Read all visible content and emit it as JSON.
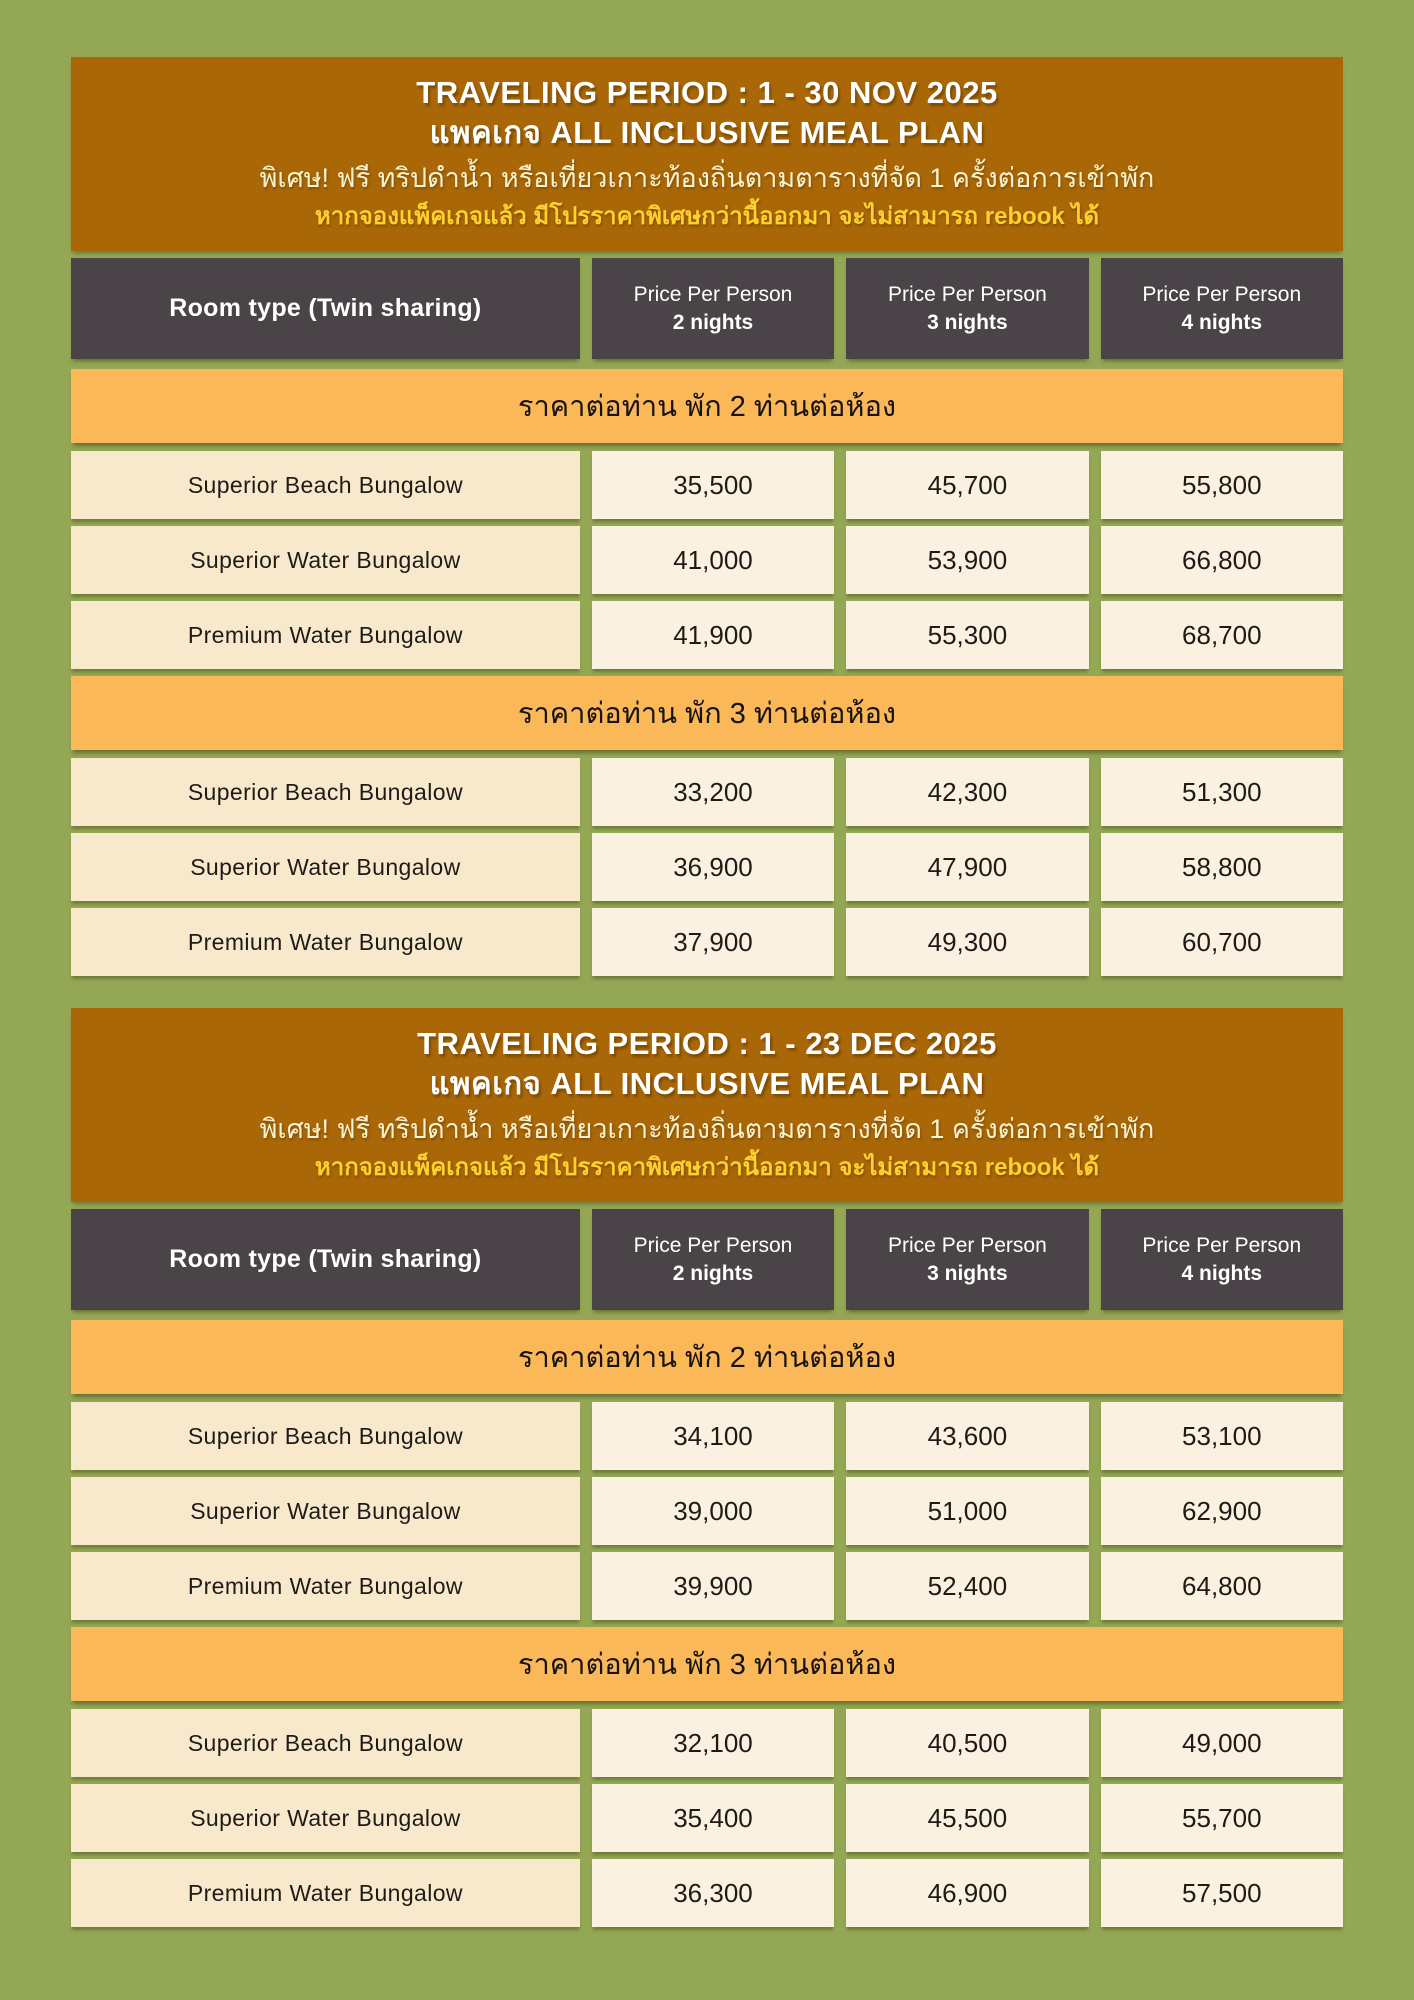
{
  "colors": {
    "page_background": "#93A754",
    "header_brown": "#A96708",
    "table_header_gray": "#4A4448",
    "band_orange": "#FAB859",
    "name_cell_cream": "#F8E9CD",
    "price_cell_cream": "#FBF1E1",
    "title_white": "#FFFFFF",
    "promo_pale_yellow": "#FBF3CF",
    "warning_gold": "#FFD02E"
  },
  "sections": [
    {
      "header": {
        "title_line1": "TRAVELING PERIOD : 1 - 30 NOV 2025",
        "title_line2": "แพคเกจ ALL INCLUSIVE MEAL PLAN",
        "promo_line": "พิเศษ! ฟรี ทริปดำน้ำ หรือเที่ยวเกาะท้องถิ่นตามตารางที่จัด 1 ครั้งต่อการเข้าพัก",
        "warning_line": "หากจองแพ็คเกจแล้ว มีโปรราคาพิเศษกว่านี้ออกมา จะไม่สามารถ rebook ได้"
      },
      "table_header": {
        "room_type": "Room type (Twin sharing)",
        "price_label": "Price Per Person",
        "nights": [
          "2 nights",
          "3 nights",
          "4 nights"
        ]
      },
      "subtables": [
        {
          "band_label": "ราคาต่อท่าน พัก 2 ท่านต่อห้อง",
          "rows": [
            {
              "name": "Superior Beach Bungalow",
              "prices": [
                "35,500",
                "45,700",
                "55,800"
              ]
            },
            {
              "name": "Superior Water Bungalow",
              "prices": [
                "41,000",
                "53,900",
                "66,800"
              ]
            },
            {
              "name": "Premium Water Bungalow",
              "prices": [
                "41,900",
                "55,300",
                "68,700"
              ]
            }
          ]
        },
        {
          "band_label": "ราคาต่อท่าน พัก 3 ท่านต่อห้อง",
          "rows": [
            {
              "name": "Superior Beach Bungalow",
              "prices": [
                "33,200",
                "42,300",
                "51,300"
              ]
            },
            {
              "name": "Superior Water Bungalow",
              "prices": [
                "36,900",
                "47,900",
                "58,800"
              ]
            },
            {
              "name": "Premium Water Bungalow",
              "prices": [
                "37,900",
                "49,300",
                "60,700"
              ]
            }
          ]
        }
      ]
    },
    {
      "header": {
        "title_line1": "TRAVELING PERIOD : 1 - 23 DEC 2025",
        "title_line2": "แพคเกจ ALL INCLUSIVE MEAL PLAN",
        "promo_line": "พิเศษ! ฟรี ทริปดำน้ำ หรือเที่ยวเกาะท้องถิ่นตามตารางที่จัด 1 ครั้งต่อการเข้าพัก",
        "warning_line": "หากจองแพ็คเกจแล้ว มีโปรราคาพิเศษกว่านี้ออกมา จะไม่สามารถ rebook ได้"
      },
      "table_header": {
        "room_type": "Room type (Twin sharing)",
        "price_label": "Price Per Person",
        "nights": [
          "2 nights",
          "3 nights",
          "4 nights"
        ]
      },
      "subtables": [
        {
          "band_label": "ราคาต่อท่าน พัก 2 ท่านต่อห้อง",
          "rows": [
            {
              "name": "Superior Beach Bungalow",
              "prices": [
                "34,100",
                "43,600",
                "53,100"
              ]
            },
            {
              "name": "Superior Water Bungalow",
              "prices": [
                "39,000",
                "51,000",
                "62,900"
              ]
            },
            {
              "name": "Premium Water Bungalow",
              "prices": [
                "39,900",
                "52,400",
                "64,800"
              ]
            }
          ]
        },
        {
          "band_label": "ราคาต่อท่าน พัก 3 ท่านต่อห้อง",
          "rows": [
            {
              "name": "Superior Beach Bungalow",
              "prices": [
                "32,100",
                "40,500",
                "49,000"
              ]
            },
            {
              "name": "Superior Water Bungalow",
              "prices": [
                "35,400",
                "45,500",
                "55,700"
              ]
            },
            {
              "name": "Premium Water Bungalow",
              "prices": [
                "36,300",
                "46,900",
                "57,500"
              ]
            }
          ]
        }
      ]
    }
  ]
}
